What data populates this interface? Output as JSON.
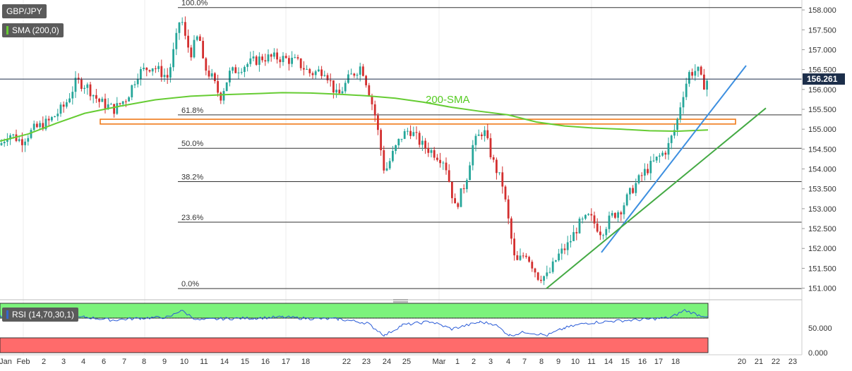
{
  "chart_data": {
    "type": "candlestick",
    "symbol": "GBP/JPY",
    "indicator_label": "SMA (200,0)",
    "sma_annotation": "200-SMA",
    "last_price": "156.261",
    "price_axis": {
      "ylim": [
        150.78,
        158.25
      ],
      "ticks": [
        "158.000",
        "157.500",
        "157.000",
        "156.500",
        "156.000",
        "155.500",
        "155.000",
        "154.500",
        "154.000",
        "153.500",
        "153.000",
        "152.500",
        "152.000",
        "151.500",
        "151.000"
      ]
    },
    "x_axis": {
      "ticks": [
        "Jan",
        "Feb",
        "2",
        "3",
        "4",
        "6",
        "7",
        "8",
        "9",
        "10",
        "11",
        "14",
        "15",
        "16",
        "17",
        "18",
        "22",
        "23",
        "24",
        "25",
        "Mar",
        "1",
        "2",
        "3",
        "4",
        "7",
        "8",
        "9",
        "10",
        "11",
        "14",
        "15",
        "16",
        "17",
        "18",
        "20",
        "21",
        "22",
        "23"
      ]
    },
    "fibonacci": [
      {
        "label": "100.0%",
        "price": 158.06
      },
      {
        "label": "61.8%",
        "price": 155.36
      },
      {
        "label": "50.0%",
        "price": 154.52
      },
      {
        "label": "38.2%",
        "price": 153.68
      },
      {
        "label": "23.6%",
        "price": 152.66
      },
      {
        "label": "0.0%",
        "price": 150.99
      }
    ],
    "support_zone": {
      "top": 155.25,
      "bottom": 155.13
    },
    "sma_colors": {
      "candle_up": "#26a69a",
      "candle_down": "#d32f2f",
      "sma": "#66cc33",
      "trend_blue": "#3d8fe0",
      "trend_green": "#44aa44",
      "zone": "#f07a1a"
    },
    "sma_200": [
      [
        0,
        154.7
      ],
      [
        40,
        154.88
      ],
      [
        80,
        155.15
      ],
      [
        120,
        155.4
      ],
      [
        170,
        155.58
      ],
      [
        220,
        155.74
      ],
      [
        270,
        155.83
      ],
      [
        320,
        155.87
      ],
      [
        370,
        155.9
      ],
      [
        400,
        155.92
      ],
      [
        440,
        155.91
      ],
      [
        480,
        155.88
      ],
      [
        520,
        155.84
      ],
      [
        560,
        155.78
      ],
      [
        600,
        155.68
      ],
      [
        640,
        155.55
      ],
      [
        680,
        155.45
      ],
      [
        720,
        155.36
      ],
      [
        760,
        155.18
      ],
      [
        800,
        155.08
      ],
      [
        840,
        155.03
      ],
      [
        880,
        155.0
      ],
      [
        920,
        154.96
      ],
      [
        960,
        154.95
      ],
      [
        1003,
        154.98
      ]
    ],
    "trendlines": [
      {
        "name": "blue",
        "from": [
          852,
          151.9
        ],
        "to": [
          1057,
          156.6
        ]
      },
      {
        "name": "green",
        "from": [
          774,
          150.99
        ],
        "to": [
          1085,
          155.53
        ]
      }
    ],
    "candles_anchor_path": [
      [
        0,
        154.6
      ],
      [
        12,
        154.9
      ],
      [
        30,
        154.7
      ],
      [
        48,
        155.0
      ],
      [
        70,
        155.2
      ],
      [
        92,
        155.6
      ],
      [
        108,
        156.2
      ],
      [
        122,
        156.1
      ],
      [
        140,
        155.7
      ],
      [
        162,
        155.5
      ],
      [
        180,
        155.8
      ],
      [
        195,
        156.4
      ],
      [
        215,
        156.6
      ],
      [
        238,
        156.3
      ],
      [
        250,
        157.3
      ],
      [
        256,
        157.9
      ],
      [
        262,
        157.3
      ],
      [
        270,
        156.9
      ],
      [
        282,
        157.4
      ],
      [
        288,
        156.6
      ],
      [
        300,
        156.3
      ],
      [
        312,
        155.8
      ],
      [
        325,
        156.4
      ],
      [
        345,
        156.6
      ],
      [
        372,
        156.8
      ],
      [
        395,
        156.8
      ],
      [
        420,
        156.7
      ],
      [
        440,
        156.4
      ],
      [
        460,
        156.5
      ],
      [
        478,
        155.8
      ],
      [
        495,
        156.3
      ],
      [
        512,
        156.6
      ],
      [
        522,
        156.0
      ],
      [
        532,
        155.3
      ],
      [
        545,
        153.9
      ],
      [
        557,
        154.4
      ],
      [
        568,
        154.8
      ],
      [
        580,
        155.0
      ],
      [
        598,
        154.6
      ],
      [
        615,
        154.4
      ],
      [
        630,
        154.2
      ],
      [
        645,
        153.0
      ],
      [
        660,
        153.7
      ],
      [
        670,
        154.6
      ],
      [
        685,
        155.0
      ],
      [
        698,
        154.2
      ],
      [
        712,
        153.6
      ],
      [
        722,
        152.5
      ],
      [
        730,
        151.6
      ],
      [
        745,
        151.9
      ],
      [
        762,
        151.3
      ],
      [
        776,
        151.3
      ],
      [
        790,
        151.8
      ],
      [
        805,
        152.1
      ],
      [
        820,
        152.6
      ],
      [
        835,
        152.8
      ],
      [
        852,
        152.4
      ],
      [
        866,
        152.8
      ],
      [
        880,
        153.0
      ],
      [
        896,
        153.5
      ],
      [
        912,
        153.9
      ],
      [
        928,
        154.2
      ],
      [
        945,
        154.5
      ],
      [
        958,
        155.1
      ],
      [
        966,
        155.8
      ],
      [
        976,
        156.4
      ],
      [
        988,
        156.5
      ],
      [
        996,
        156.1
      ],
      [
        1003,
        156.26
      ]
    ]
  },
  "rsi": {
    "label": "RSI (14,70,30,1)",
    "ticks": [
      "50.000",
      "0.000"
    ],
    "ylim": [
      0,
      100
    ],
    "series": [
      [
        0,
        74
      ],
      [
        40,
        71
      ],
      [
        80,
        68
      ],
      [
        120,
        72
      ],
      [
        160,
        66
      ],
      [
        200,
        70
      ],
      [
        240,
        72
      ],
      [
        256,
        86
      ],
      [
        280,
        66
      ],
      [
        320,
        69
      ],
      [
        360,
        70
      ],
      [
        400,
        72
      ],
      [
        440,
        69
      ],
      [
        480,
        68
      ],
      [
        520,
        60
      ],
      [
        545,
        35
      ],
      [
        570,
        56
      ],
      [
        610,
        63
      ],
      [
        640,
        48
      ],
      [
        680,
        62
      ],
      [
        700,
        58
      ],
      [
        722,
        35
      ],
      [
        745,
        42
      ],
      [
        775,
        35
      ],
      [
        800,
        50
      ],
      [
        830,
        60
      ],
      [
        870,
        64
      ],
      [
        910,
        67
      ],
      [
        950,
        71
      ],
      [
        970,
        86
      ],
      [
        990,
        76
      ],
      [
        1003,
        74
      ]
    ]
  }
}
